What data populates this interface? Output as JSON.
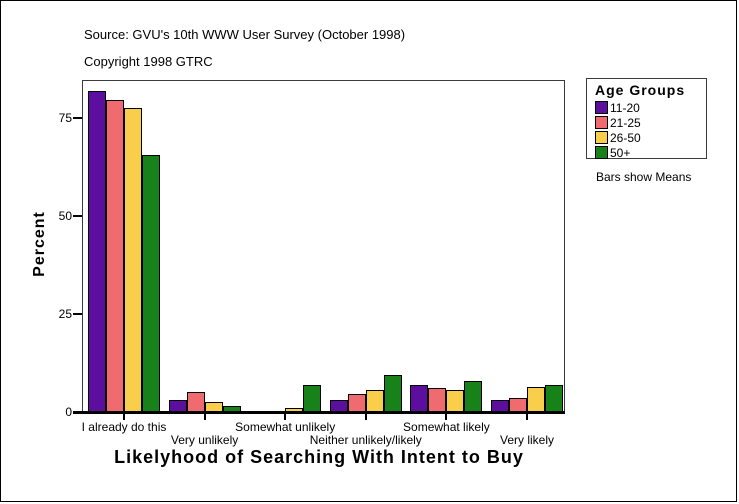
{
  "header": {
    "source": "Source: GVU's 10th WWW User Survey (October 1998)",
    "copyright": "Copyright 1998 GTRC"
  },
  "chart_data": {
    "type": "bar",
    "title": "Likelyhood of Searching With Intent to Buy",
    "ylabel": "Percent",
    "xlabel": "Likelyhood of Searching With Intent to Buy",
    "y_ticks": [
      0,
      25,
      50,
      75
    ],
    "ylim": [
      0,
      85
    ],
    "grid": false,
    "legend_position": "right",
    "legend_title": "Age Groups",
    "note": "Bars show Means",
    "categories": [
      "I already do this",
      "Very unlikely",
      "Somewhat unlikely",
      "Neither unlikely/likely",
      "Somewhat likely",
      "Very likely"
    ],
    "series": [
      {
        "name": "11-20",
        "color": "#5C0E9E",
        "values": [
          82,
          3,
          0,
          3,
          7,
          3
        ]
      },
      {
        "name": "21-25",
        "color": "#EF6B6F",
        "values": [
          79.5,
          5,
          0,
          4.5,
          6,
          3.5
        ]
      },
      {
        "name": "26-50",
        "color": "#F8CE4A",
        "values": [
          77.5,
          2.5,
          1,
          5.5,
          5.5,
          6.5
        ]
      },
      {
        "name": "50+",
        "color": "#178219",
        "values": [
          65.5,
          1.5,
          7,
          9.5,
          8,
          7
        ]
      }
    ]
  }
}
